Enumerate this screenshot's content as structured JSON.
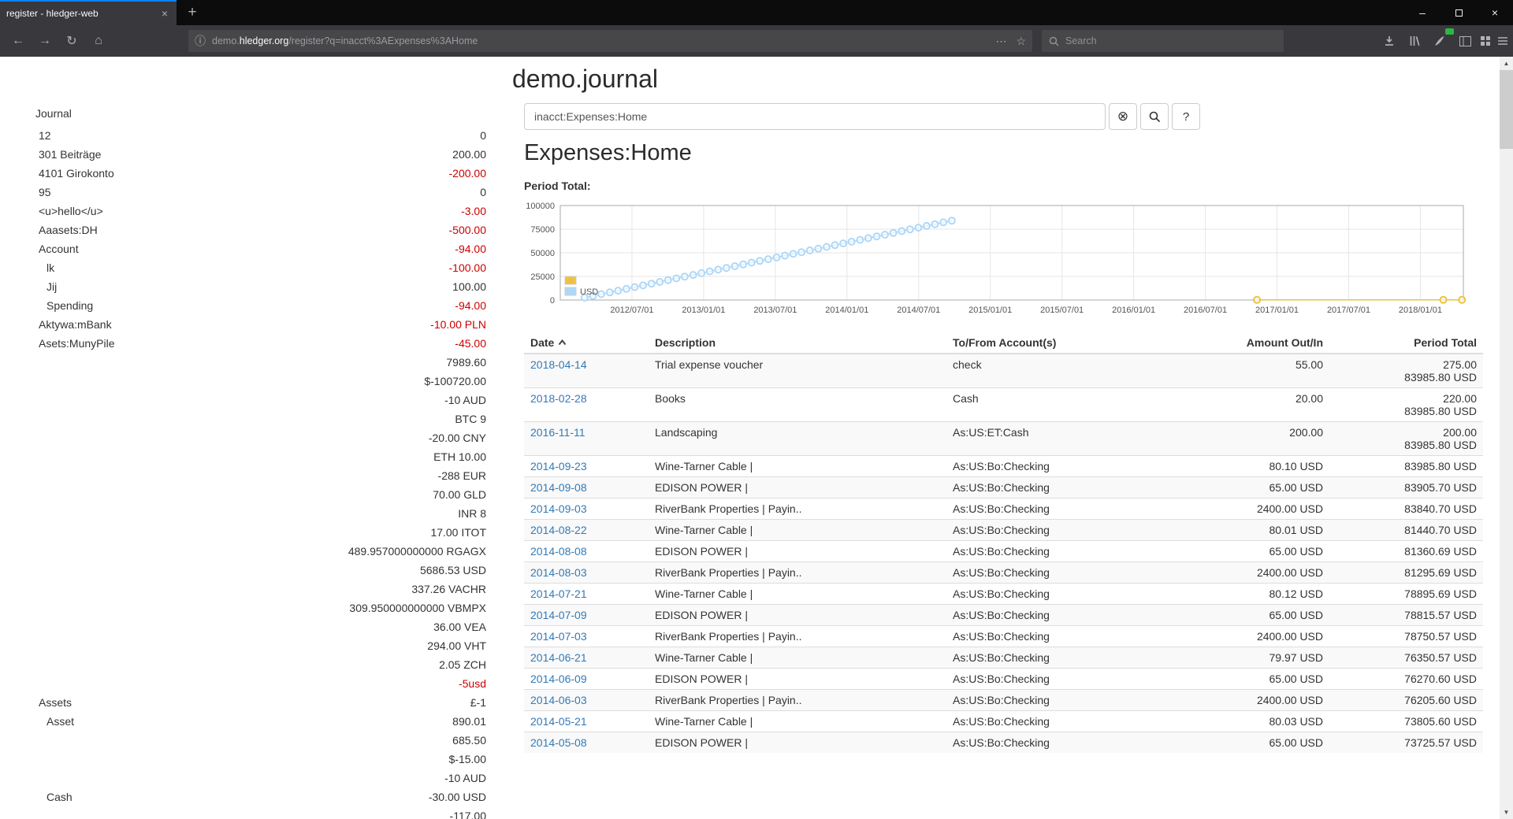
{
  "browser": {
    "tab_title": "register - hledger-web",
    "search_placeholder": "Search",
    "url": {
      "pre": "demo.",
      "host": "hledger.org",
      "path": "/register?q=inacct%3AExpenses%3AHome"
    },
    "glyphs": {
      "back": "←",
      "forward": "→",
      "reload": "↻",
      "home": "⌂",
      "info": "ⓘ",
      "dots": "⋯",
      "star": "☆",
      "newtab": "+",
      "tab_close": "×",
      "minimize": "–",
      "close": "×",
      "scroll_up": "▲",
      "scroll_down": "▼"
    }
  },
  "page": {
    "title": "demo.journal",
    "query_value": "inacct:Expenses:Home",
    "clear_glyph": "⊗",
    "help_label": "?",
    "account_heading": "Expenses:Home",
    "period_total_label": "Period Total:"
  },
  "sidebar": {
    "heading": "Journal",
    "rows": [
      {
        "name": "12",
        "level": 1,
        "balance": "0",
        "neg": false
      },
      {
        "name": "301 Beiträge",
        "level": 1,
        "balance": "200.00",
        "neg": false
      },
      {
        "name": "4101 Girokonto",
        "level": 1,
        "balance": "-200.00",
        "neg": true
      },
      {
        "name": "95",
        "level": 1,
        "balance": "0",
        "neg": false
      },
      {
        "name": "<u>hello</u>",
        "level": 1,
        "balance": "-3.00",
        "neg": true
      },
      {
        "name": "Aaasets:DH",
        "level": 1,
        "balance": "-500.00",
        "neg": true
      },
      {
        "name": "Account",
        "level": 1,
        "balance": "-94.00",
        "neg": true
      },
      {
        "name": "lk",
        "level": 2,
        "balance": "-100.00",
        "neg": true
      },
      {
        "name": "Jij",
        "level": 2,
        "balance": "100.00",
        "neg": false
      },
      {
        "name": "Spending",
        "level": 2,
        "balance": "-94.00",
        "neg": true
      },
      {
        "name": "Aktywa:mBank",
        "level": 1,
        "balance": "-10.00 PLN",
        "neg": true
      },
      {
        "name": "Asets:MunyPile",
        "level": 1,
        "balance": "-45.00",
        "neg": true
      },
      {
        "name": "",
        "level": 0,
        "balance": "7989.60",
        "neg": false
      },
      {
        "name": "",
        "level": 0,
        "balance": "$-100720.00",
        "neg": false
      },
      {
        "name": "",
        "level": 0,
        "balance": "-10 AUD",
        "neg": false
      },
      {
        "name": "",
        "level": 0,
        "balance": "BTC 9",
        "neg": false
      },
      {
        "name": "",
        "level": 0,
        "balance": "-20.00 CNY",
        "neg": false
      },
      {
        "name": "",
        "level": 0,
        "balance": "ETH 10.00",
        "neg": false
      },
      {
        "name": "",
        "level": 0,
        "balance": "-288 EUR",
        "neg": false
      },
      {
        "name": "",
        "level": 0,
        "balance": "70.00 GLD",
        "neg": false
      },
      {
        "name": "",
        "level": 0,
        "balance": "INR 8",
        "neg": false
      },
      {
        "name": "",
        "level": 0,
        "balance": "17.00 ITOT",
        "neg": false
      },
      {
        "name": "",
        "level": 0,
        "balance": "489.957000000000 RGAGX",
        "neg": false
      },
      {
        "name": "",
        "level": 0,
        "balance": "5686.53 USD",
        "neg": false
      },
      {
        "name": "",
        "level": 0,
        "balance": "337.26 VACHR",
        "neg": false
      },
      {
        "name": "",
        "level": 0,
        "balance": "309.950000000000 VBMPX",
        "neg": false
      },
      {
        "name": "",
        "level": 0,
        "balance": "36.00 VEA",
        "neg": false
      },
      {
        "name": "",
        "level": 0,
        "balance": "294.00 VHT",
        "neg": false
      },
      {
        "name": "",
        "level": 0,
        "balance": "2.05 ZCH",
        "neg": false
      },
      {
        "name": "",
        "level": 0,
        "balance": "-5usd",
        "neg": true
      },
      {
        "name": "Assets",
        "level": 1,
        "balance": "£-1",
        "neg": false
      },
      {
        "name": "Asset",
        "level": 2,
        "balance": "890.01",
        "neg": false
      },
      {
        "name": "",
        "level": 0,
        "balance": "685.50",
        "neg": false
      },
      {
        "name": "",
        "level": 0,
        "balance": "$-15.00",
        "neg": false
      },
      {
        "name": "",
        "level": 0,
        "balance": "-10 AUD",
        "neg": false
      },
      {
        "name": "Cash",
        "level": 2,
        "balance": "-30.00 USD",
        "neg": false
      },
      {
        "name": "",
        "level": 0,
        "balance": "-117.00",
        "neg": false
      }
    ]
  },
  "register": {
    "columns": [
      "Date",
      "Description",
      "To/From Account(s)",
      "Amount Out/In",
      "Period Total"
    ],
    "rows": [
      {
        "date": "2018-04-14",
        "description": "Trial expense voucher",
        "account": "check",
        "amount": "55.00",
        "total": [
          "275.00",
          "83985.80 USD"
        ]
      },
      {
        "date": "2018-02-28",
        "description": "Books",
        "account": "Cash",
        "amount": "20.00",
        "total": [
          "220.00",
          "83985.80 USD"
        ]
      },
      {
        "date": "2016-11-11",
        "description": "Landscaping",
        "account": "As:US:ET:Cash",
        "amount": "200.00",
        "total": [
          "200.00",
          "83985.80 USD"
        ]
      },
      {
        "date": "2014-09-23",
        "description": "Wine-Tarner Cable |",
        "account": "As:US:Bo:Checking",
        "amount": "80.10 USD",
        "total": [
          "83985.80 USD"
        ]
      },
      {
        "date": "2014-09-08",
        "description": "EDISON POWER |",
        "account": "As:US:Bo:Checking",
        "amount": "65.00 USD",
        "total": [
          "83905.70 USD"
        ]
      },
      {
        "date": "2014-09-03",
        "description": "RiverBank Properties | Payin..",
        "account": "As:US:Bo:Checking",
        "amount": "2400.00 USD",
        "total": [
          "83840.70 USD"
        ]
      },
      {
        "date": "2014-08-22",
        "description": "Wine-Tarner Cable |",
        "account": "As:US:Bo:Checking",
        "amount": "80.01 USD",
        "total": [
          "81440.70 USD"
        ]
      },
      {
        "date": "2014-08-08",
        "description": "EDISON POWER |",
        "account": "As:US:Bo:Checking",
        "amount": "65.00 USD",
        "total": [
          "81360.69 USD"
        ]
      },
      {
        "date": "2014-08-03",
        "description": "RiverBank Properties | Payin..",
        "account": "As:US:Bo:Checking",
        "amount": "2400.00 USD",
        "total": [
          "81295.69 USD"
        ]
      },
      {
        "date": "2014-07-21",
        "description": "Wine-Tarner Cable |",
        "account": "As:US:Bo:Checking",
        "amount": "80.12 USD",
        "total": [
          "78895.69 USD"
        ]
      },
      {
        "date": "2014-07-09",
        "description": "EDISON POWER |",
        "account": "As:US:Bo:Checking",
        "amount": "65.00 USD",
        "total": [
          "78815.57 USD"
        ]
      },
      {
        "date": "2014-07-03",
        "description": "RiverBank Properties | Payin..",
        "account": "As:US:Bo:Checking",
        "amount": "2400.00 USD",
        "total": [
          "78750.57 USD"
        ]
      },
      {
        "date": "2014-06-21",
        "description": "Wine-Tarner Cable |",
        "account": "As:US:Bo:Checking",
        "amount": "79.97 USD",
        "total": [
          "76350.57 USD"
        ]
      },
      {
        "date": "2014-06-09",
        "description": "EDISON POWER |",
        "account": "As:US:Bo:Checking",
        "amount": "65.00 USD",
        "total": [
          "76270.60 USD"
        ]
      },
      {
        "date": "2014-06-03",
        "description": "RiverBank Properties | Payin..",
        "account": "As:US:Bo:Checking",
        "amount": "2400.00 USD",
        "total": [
          "76205.60 USD"
        ]
      },
      {
        "date": "2014-05-21",
        "description": "Wine-Tarner Cable |",
        "account": "As:US:Bo:Checking",
        "amount": "80.03 USD",
        "total": [
          "73805.60 USD"
        ]
      },
      {
        "date": "2014-05-08",
        "description": "EDISON POWER |",
        "account": "As:US:Bo:Checking",
        "amount": "65.00 USD",
        "total": [
          "73725.57 USD"
        ]
      }
    ]
  },
  "chart_data": {
    "type": "line",
    "title": "Period Total:",
    "xlabel": "",
    "ylabel": "",
    "x_format": "decimal-year",
    "x_domain": [
      2012.0,
      2018.3
    ],
    "ylim": [
      0,
      100000
    ],
    "grid": true,
    "legend_position": "bottom-left-inside",
    "y_ticks": [
      0,
      25000,
      50000,
      75000,
      100000
    ],
    "y_tick_labels": [
      "0",
      "25000",
      "50000",
      "75000",
      "100000"
    ],
    "x_ticks": [
      2012.5,
      2013.0,
      2013.5,
      2014.0,
      2014.5,
      2015.0,
      2015.5,
      2016.0,
      2016.5,
      2017.0,
      2017.5,
      2018.0
    ],
    "x_tick_labels": [
      "2012/07/01",
      "2013/01/01",
      "2013/07/01",
      "2014/01/01",
      "2014/07/01",
      "2015/01/01",
      "2015/07/01",
      "2016/01/01",
      "2016/07/01",
      "2017/01/01",
      "2017/07/01",
      "2018/01/01"
    ],
    "legend": [
      {
        "label": "",
        "color": "#edc240"
      },
      {
        "label": "USD",
        "color": "#afd8f8"
      }
    ],
    "series": [
      {
        "name": "",
        "color": "#edc240",
        "points": [
          [
            2016.86,
            200
          ],
          [
            2018.16,
            220
          ],
          [
            2018.29,
            275
          ]
        ]
      },
      {
        "name": "USD",
        "color": "#afd8f8",
        "points": [
          [
            2012.17,
            2545
          ],
          [
            2012.228,
            4396
          ],
          [
            2012.286,
            6247
          ],
          [
            2012.345,
            8098
          ],
          [
            2012.403,
            9949
          ],
          [
            2012.461,
            11800
          ],
          [
            2012.519,
            13651
          ],
          [
            2012.577,
            15501
          ],
          [
            2012.636,
            17352
          ],
          [
            2012.694,
            19203
          ],
          [
            2012.752,
            21054
          ],
          [
            2012.81,
            22905
          ],
          [
            2012.868,
            24756
          ],
          [
            2012.927,
            26607
          ],
          [
            2012.985,
            28458
          ],
          [
            2013.043,
            30309
          ],
          [
            2013.101,
            32160
          ],
          [
            2013.159,
            34011
          ],
          [
            2013.218,
            35862
          ],
          [
            2013.276,
            37713
          ],
          [
            2013.334,
            39564
          ],
          [
            2013.392,
            41415
          ],
          [
            2013.45,
            43266
          ],
          [
            2013.509,
            45116
          ],
          [
            2013.567,
            46967
          ],
          [
            2013.625,
            48818
          ],
          [
            2013.683,
            50669
          ],
          [
            2013.741,
            52520
          ],
          [
            2013.8,
            54371
          ],
          [
            2013.858,
            56222
          ],
          [
            2013.916,
            58073
          ],
          [
            2013.974,
            59924
          ],
          [
            2014.032,
            61775
          ],
          [
            2014.091,
            63626
          ],
          [
            2014.149,
            65477
          ],
          [
            2014.207,
            67328
          ],
          [
            2014.265,
            69179
          ],
          [
            2014.323,
            71030
          ],
          [
            2014.382,
            72880
          ],
          [
            2014.44,
            74731
          ],
          [
            2014.498,
            76582
          ],
          [
            2014.556,
            78433
          ],
          [
            2014.614,
            80284
          ],
          [
            2014.673,
            82135
          ],
          [
            2014.731,
            83986
          ]
        ]
      }
    ]
  }
}
